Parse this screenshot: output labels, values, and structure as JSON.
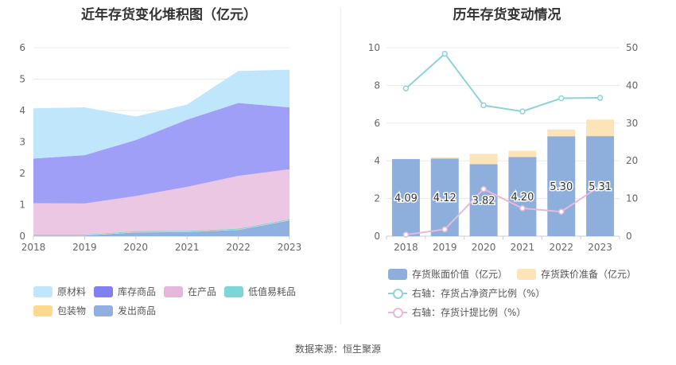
{
  "source": "数据来源：恒生聚源",
  "chart_data": [
    {
      "type": "area",
      "stacked": true,
      "title": "近年存货变化堆积图（亿元）",
      "categories": [
        "2018",
        "2019",
        "2020",
        "2021",
        "2022",
        "2023"
      ],
      "ylim": [
        0,
        6
      ],
      "yticks": [
        "0",
        "1",
        "2",
        "3",
        "4",
        "5",
        "6"
      ],
      "legend_position": "bottom",
      "series": [
        {
          "name": "发出商品",
          "color": "#8fb0e0",
          "values": [
            0.02,
            0.02,
            0.12,
            0.13,
            0.2,
            0.5
          ]
        },
        {
          "name": "包装物",
          "color": "#ffd98e",
          "values": [
            0.01,
            0.01,
            0.01,
            0.01,
            0.01,
            0.01
          ]
        },
        {
          "name": "低值易耗品",
          "color": "#7dd5d5",
          "values": [
            0.02,
            0.02,
            0.03,
            0.03,
            0.03,
            0.03
          ]
        },
        {
          "name": "在产品",
          "color": "#ecc7e4",
          "values": [
            1.0,
            0.99,
            1.12,
            1.4,
            1.68,
            1.59
          ]
        },
        {
          "name": "库存商品",
          "color": "#9f9ff7",
          "values": [
            1.42,
            1.54,
            1.78,
            2.14,
            2.32,
            1.97
          ]
        },
        {
          "name": "原材料",
          "color": "#bfe6fb",
          "values": [
            1.6,
            1.52,
            0.75,
            0.48,
            1.02,
            1.2
          ]
        }
      ],
      "legend_order": [
        "原材料",
        "库存商品",
        "在产品",
        "低值易耗品",
        "包装物",
        "发出商品"
      ]
    },
    {
      "type": "bar",
      "stacked": true,
      "title": "历年存货变动情况",
      "categories": [
        "2018",
        "2019",
        "2020",
        "2021",
        "2022",
        "2023"
      ],
      "ylim": [
        0,
        10
      ],
      "yticks": [
        "0",
        "2",
        "4",
        "6",
        "8",
        "10"
      ],
      "y2lim": [
        0,
        50
      ],
      "y2ticks": [
        "0",
        "10",
        "20",
        "30",
        "40",
        "50"
      ],
      "legend_position": "bottom",
      "bars": [
        {
          "name": "存货账面价值（亿元）",
          "color": "#8eaedc",
          "values": [
            4.09,
            4.12,
            3.82,
            4.2,
            5.3,
            5.31
          ],
          "labels": [
            "4.09",
            "4.12",
            "3.82",
            "4.20",
            "5.30",
            "5.31"
          ]
        },
        {
          "name": "存货跌价准备（亿元）",
          "color": "#fde3b8",
          "values": [
            0.0,
            0.06,
            0.55,
            0.33,
            0.36,
            0.88
          ]
        }
      ],
      "lines": [
        {
          "name": "右轴：存货占净资产比例（%）",
          "color": "#8dd3dc",
          "values": [
            39.2,
            48.4,
            34.7,
            33.1,
            36.6,
            36.7
          ]
        },
        {
          "name": "右轴：存货计提比例（%）",
          "color": "#e9b9dc",
          "values": [
            0.4,
            1.8,
            12.5,
            7.4,
            6.5,
            13.3
          ]
        }
      ]
    }
  ]
}
